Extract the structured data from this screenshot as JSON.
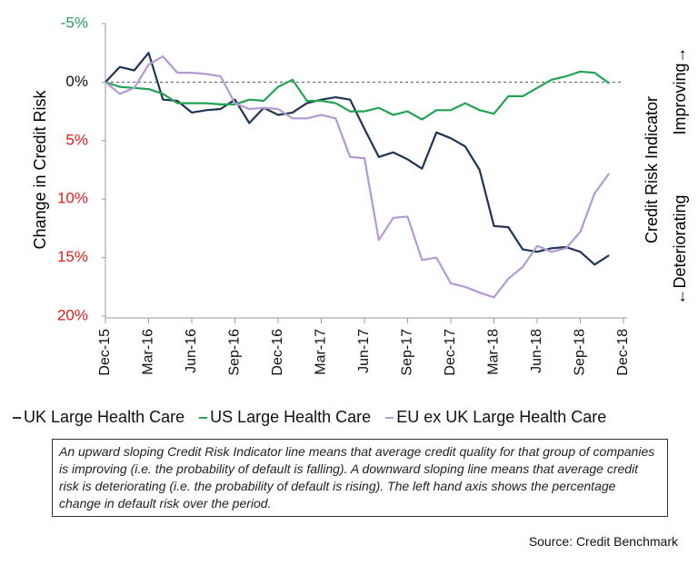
{
  "chart_data": {
    "type": "line",
    "ylabel": "Change in Credit Risk",
    "y2label": "Credit Risk Indicator",
    "improving_label": "Improving→",
    "deteriorating_label": "←Deteriorating",
    "note": "An upward sloping Credit Risk Indicator line means that average credit quality for that group of companies is improving (i.e. the probability of default is falling).  A downward sloping line means that average credit risk is deteriorating (i.e. the probability of default is rising).  The left hand axis shows the percentage change in default risk over the period.",
    "source": "Source: Credit Benchmark",
    "y_inverted": true,
    "ylim": [
      -5,
      20
    ],
    "yticks": [
      {
        "value": -5,
        "label": "-5%"
      },
      {
        "value": 0,
        "label": "0%"
      },
      {
        "value": 5,
        "label": "5%"
      },
      {
        "value": 10,
        "label": "10%"
      },
      {
        "value": 15,
        "label": "15%"
      },
      {
        "value": 20,
        "label": "20%"
      }
    ],
    "reference_line": 0,
    "xlim": [
      "2015-12",
      "2018-12"
    ],
    "xticks": [
      {
        "value": "2015-12",
        "label": "Dec-15"
      },
      {
        "value": "2016-03",
        "label": "Mar-16"
      },
      {
        "value": "2016-06",
        "label": "Jun-16"
      },
      {
        "value": "2016-09",
        "label": "Sep-16"
      },
      {
        "value": "2016-12",
        "label": "Dec-16"
      },
      {
        "value": "2017-03",
        "label": "Mar-17"
      },
      {
        "value": "2017-06",
        "label": "Jun-17"
      },
      {
        "value": "2017-09",
        "label": "Sep-17"
      },
      {
        "value": "2017-12",
        "label": "Dec-17"
      },
      {
        "value": "2018-03",
        "label": "Mar-18"
      },
      {
        "value": "2018-06",
        "label": "Jun-18"
      },
      {
        "value": "2018-09",
        "label": "Sep-18"
      },
      {
        "value": "2018-12",
        "label": "Dec-18"
      }
    ],
    "x": [
      "2015-12",
      "2016-01",
      "2016-02",
      "2016-03",
      "2016-04",
      "2016-05",
      "2016-06",
      "2016-07",
      "2016-08",
      "2016-09",
      "2016-10",
      "2016-11",
      "2016-12",
      "2017-01",
      "2017-02",
      "2017-03",
      "2017-04",
      "2017-05",
      "2017-06",
      "2017-07",
      "2017-08",
      "2017-09",
      "2017-10",
      "2017-11",
      "2017-12",
      "2018-01",
      "2018-02",
      "2018-03",
      "2018-04",
      "2018-05",
      "2018-06",
      "2018-07",
      "2018-08",
      "2018-09",
      "2018-10",
      "2018-11"
    ],
    "series": [
      {
        "name": "UK Large Health Care",
        "color": "#1f3556",
        "values": [
          0,
          -1.3,
          -1.0,
          -2.5,
          1.5,
          1.6,
          2.6,
          2.4,
          2.3,
          1.5,
          3.5,
          2.2,
          2.8,
          2.6,
          1.8,
          1.5,
          1.3,
          1.5,
          4.0,
          6.4,
          6.0,
          6.6,
          7.4,
          4.3,
          4.8,
          5.5,
          7.5,
          12.3,
          12.4,
          14.3,
          14.5,
          14.2,
          14.1,
          14.5,
          15.6,
          14.8
        ]
      },
      {
        "name": "US Large Health Care",
        "color": "#22a352",
        "values": [
          0,
          0.4,
          0.5,
          0.6,
          1.0,
          1.8,
          1.8,
          1.8,
          1.9,
          1.9,
          1.5,
          1.6,
          0.4,
          -0.2,
          1.6,
          1.6,
          1.8,
          2.5,
          2.5,
          2.2,
          2.8,
          2.5,
          3.2,
          2.4,
          2.4,
          1.8,
          2.4,
          2.7,
          1.2,
          1.2,
          0.5,
          -0.2,
          -0.5,
          -0.9,
          -0.8,
          0.1
        ]
      },
      {
        "name": "EU ex UK Large Health Care",
        "color": "#b39ad6",
        "values": [
          0,
          1.0,
          0.5,
          -1.5,
          -2.2,
          -0.8,
          -0.8,
          -0.7,
          -0.5,
          1.8,
          2.3,
          2.2,
          2.3,
          3.1,
          3.1,
          2.8,
          3.1,
          6.4,
          6.5,
          13.5,
          11.6,
          11.5,
          15.2,
          15.0,
          17.2,
          17.5,
          18.0,
          18.4,
          16.8,
          15.8,
          14.0,
          14.5,
          14.2,
          12.8,
          9.5,
          7.8
        ]
      }
    ]
  }
}
